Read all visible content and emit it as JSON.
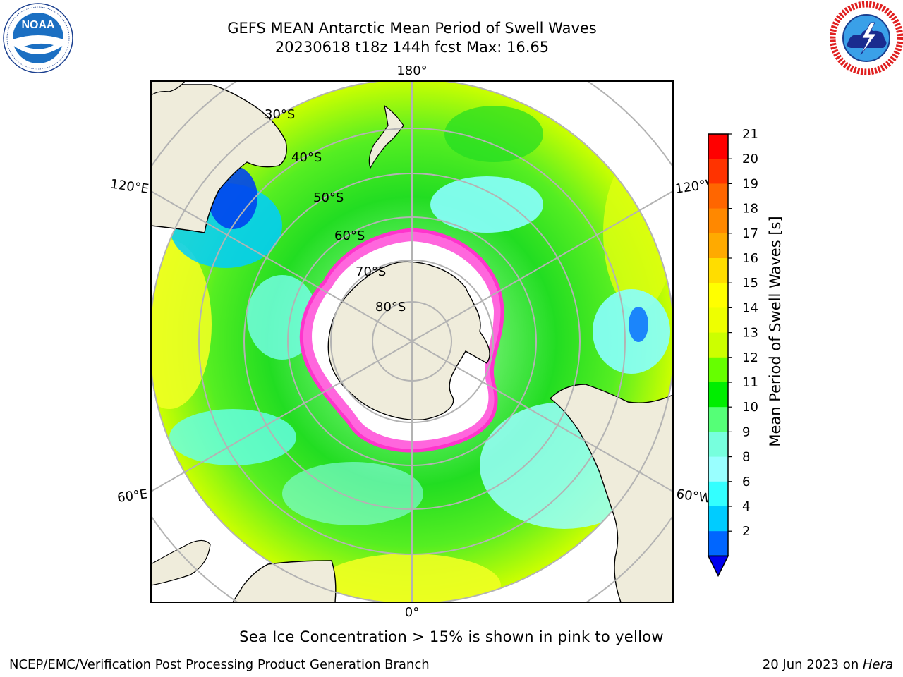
{
  "title": {
    "line1": "GEFS MEAN Antarctic Mean Period of Swell Waves",
    "line2": "20230618 t18z 144h fcst   Max: 16.65"
  },
  "logos": {
    "left": {
      "icon": "noaa-logo-icon",
      "text": "NOAA",
      "ring_text": "NATIONAL OCEANIC AND ATMOSPHERIC ADMINISTRATION · U.S. DEPARTMENT OF COMMERCE"
    },
    "right": {
      "icon": "nws-logo-icon",
      "ring_text": "NATIONAL WEATHER SERVICE"
    }
  },
  "map": {
    "projection": "south-polar-stereographic",
    "longitude_labels": {
      "top": "180°",
      "bottom": "0°",
      "left_upper": "120°E",
      "left_lower": "60°E",
      "right_upper": "120°W",
      "right_lower": "60°W"
    },
    "latitude_labels": [
      "30°S",
      "40°S",
      "50°S",
      "60°S",
      "70°S",
      "80°S"
    ],
    "colors": {
      "land": "#efecdb",
      "ice_edge": "#ff33cc",
      "ice_inner": "#ffffff",
      "graticule": "#b3b3b3"
    }
  },
  "colorbar": {
    "label": "Mean Period of Swell Waves [s]",
    "ticks": [
      "21",
      "20",
      "19",
      "18",
      "17",
      "16",
      "15",
      "14",
      "13",
      "12",
      "11",
      "10",
      "9",
      "8",
      "6",
      "4",
      "2"
    ],
    "colors": [
      "#ff0000",
      "#ff3300",
      "#ff6600",
      "#ff8800",
      "#ffaa00",
      "#ffdd00",
      "#ffff00",
      "#eeff00",
      "#ccff00",
      "#66ff00",
      "#00ee00",
      "#55ff77",
      "#77ffdd",
      "#99ffff",
      "#33ffff",
      "#00ccff",
      "#0066ff"
    ],
    "extend_color": "#0000ee"
  },
  "footer": {
    "note": "Sea Ice Concentration > 15% is shown in pink to yellow",
    "branch": "NCEP/EMC/Verification Post Processing Product Generation Branch",
    "date": "20 Jun 2023 on ",
    "host": "Hera"
  }
}
